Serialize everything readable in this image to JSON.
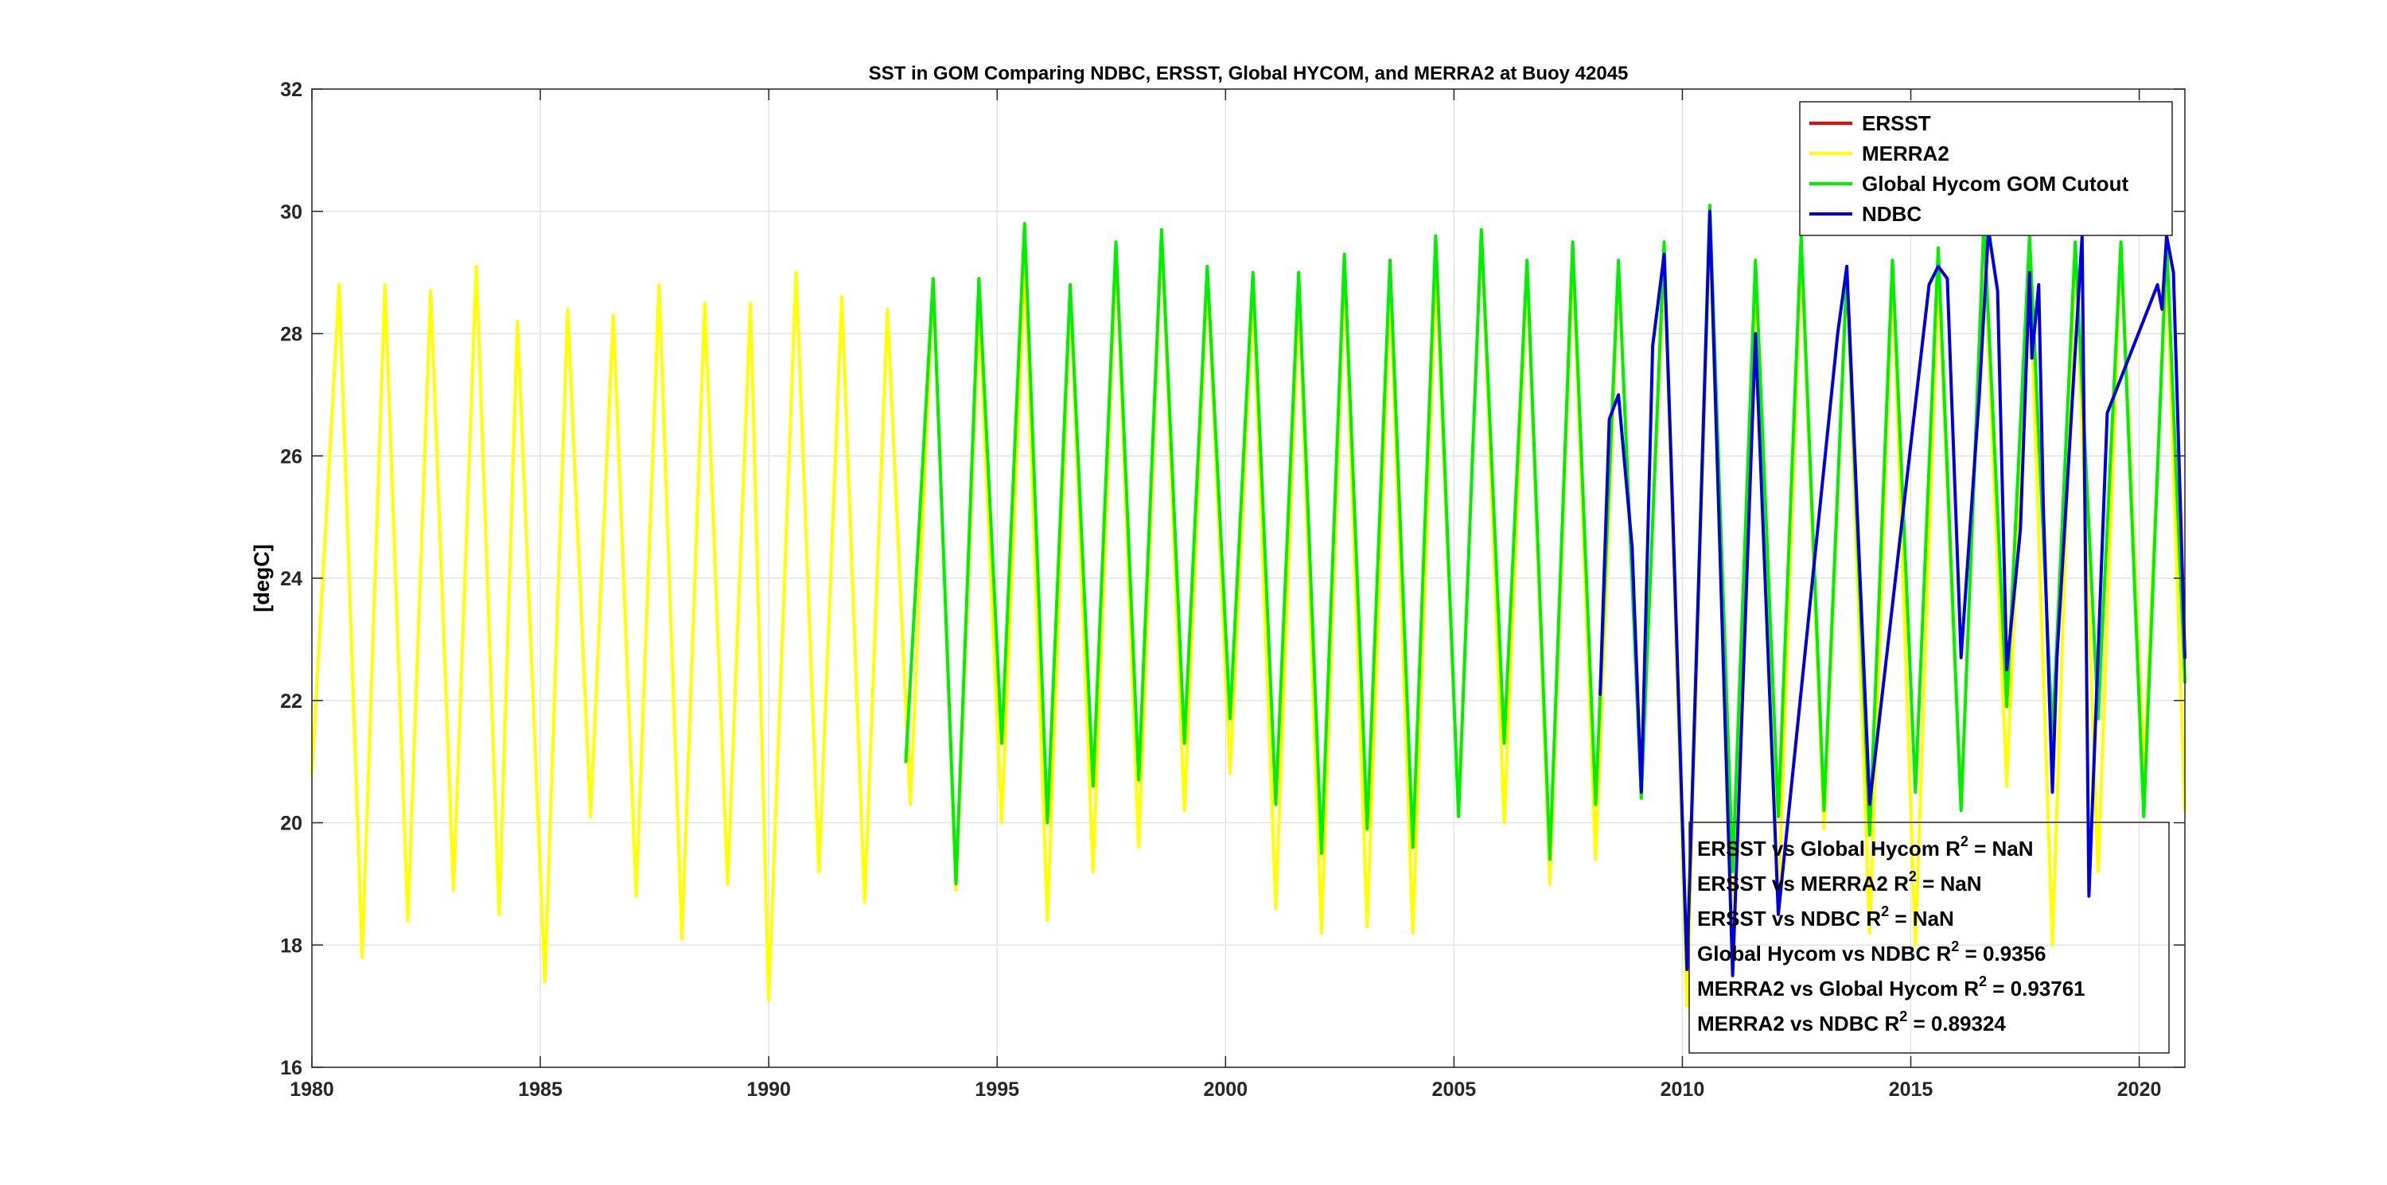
{
  "chart_data": {
    "type": "line",
    "title": "SST in GOM Comparing NDBC, ERSST, Global HYCOM, and MERRA2 at Buoy  42045",
    "ylabel": "[degC]",
    "xlabel": "",
    "xlim": [
      1980,
      2021
    ],
    "ylim": [
      16,
      32
    ],
    "x_ticks": [
      1980,
      1985,
      1990,
      1995,
      2000,
      2005,
      2010,
      2015,
      2020
    ],
    "x_tick_labels": [
      "1980",
      "1985",
      "1990",
      "1995",
      "2000",
      "2005",
      "2010",
      "2015",
      "2020"
    ],
    "y_ticks": [
      16,
      18,
      20,
      22,
      24,
      26,
      28,
      30,
      32
    ],
    "y_tick_labels": [
      "16",
      "18",
      "20",
      "22",
      "24",
      "26",
      "28",
      "30",
      "32"
    ],
    "grid": true,
    "legend_position": "top-right",
    "series": [
      {
        "name": "ERSST",
        "color": "#ff0000",
        "x": [],
        "values": []
      },
      {
        "name": "MERRA2",
        "color": "#ffff00",
        "x": [
          1980.0,
          1980.6,
          1981.1,
          1981.6,
          1982.1,
          1982.6,
          1983.1,
          1983.6,
          1984.1,
          1984.5,
          1985.1,
          1985.6,
          1986.1,
          1986.6,
          1987.1,
          1987.6,
          1988.1,
          1988.6,
          1989.1,
          1989.6,
          1990.0,
          1990.6,
          1991.1,
          1991.6,
          1992.1,
          1992.6,
          1993.1,
          1993.6,
          1994.1,
          1994.6,
          1995.1,
          1995.6,
          1996.1,
          1996.6,
          1997.1,
          1997.6,
          1998.1,
          1998.6,
          1999.1,
          1999.6,
          2000.1,
          2000.6,
          2001.1,
          2001.6,
          2002.1,
          2002.6,
          2003.1,
          2003.6,
          2004.1,
          2004.6,
          2005.1,
          2005.6,
          2006.1,
          2006.6,
          2007.1,
          2007.6,
          2008.1,
          2008.6,
          2009.1,
          2009.6,
          2010.1,
          2010.6,
          2011.1,
          2011.6,
          2012.1,
          2012.6,
          2013.1,
          2013.6,
          2014.1,
          2014.6,
          2015.1,
          2015.6,
          2016.1,
          2016.6,
          2017.1,
          2017.6,
          2018.1,
          2018.6,
          2019.1,
          2019.6,
          2020.1,
          2020.6,
          2021.0
        ],
        "values": [
          20.8,
          28.8,
          17.8,
          28.8,
          18.4,
          28.7,
          18.9,
          29.1,
          18.5,
          28.2,
          17.4,
          28.4,
          20.1,
          28.3,
          18.8,
          28.8,
          18.1,
          28.5,
          19.0,
          28.5,
          17.1,
          29.0,
          19.2,
          28.6,
          18.7,
          28.4,
          20.3,
          28.9,
          18.9,
          28.4,
          20.0,
          29.2,
          18.4,
          28.7,
          19.2,
          29.4,
          19.6,
          29.7,
          20.2,
          29.0,
          20.8,
          28.7,
          18.6,
          28.7,
          18.2,
          29.1,
          18.3,
          28.8,
          18.2,
          29.1,
          20.2,
          29.7,
          20.0,
          29.1,
          19.0,
          29.3,
          19.4,
          29.1,
          20.6,
          29.2,
          17.0,
          29.5,
          18.2,
          29.0,
          18.6,
          29.4,
          19.9,
          29.0,
          18.2,
          29.1,
          18.0,
          29.0,
          20.2,
          29.6,
          20.6,
          29.2,
          18.0,
          29.5,
          19.2,
          29.5,
          20.8,
          29.2,
          20.2
        ]
      },
      {
        "name": "Global Hycom GOM Cutout",
        "color": "#00ee00",
        "x": [
          1993.0,
          1993.6,
          1994.1,
          1994.6,
          1995.1,
          1995.6,
          1996.1,
          1996.6,
          1997.1,
          1997.6,
          1998.1,
          1998.6,
          1999.1,
          1999.6,
          2000.1,
          2000.6,
          2001.1,
          2001.6,
          2002.1,
          2002.6,
          2003.1,
          2003.6,
          2004.1,
          2004.6,
          2005.1,
          2005.6,
          2006.1,
          2006.6,
          2007.1,
          2007.6,
          2008.1,
          2008.6,
          2009.1,
          2009.6,
          2010.1,
          2010.6,
          2011.1,
          2011.6,
          2012.1,
          2012.6,
          2013.1,
          2013.6,
          2014.1,
          2014.6,
          2015.1,
          2015.6,
          2016.1,
          2016.6,
          2017.1,
          2017.6,
          2018.1,
          2018.6,
          2019.1,
          2019.6,
          2020.1,
          2020.6,
          2021.0
        ],
        "values": [
          21.0,
          28.9,
          19.0,
          28.9,
          21.3,
          29.8,
          20.0,
          28.8,
          20.6,
          29.5,
          20.7,
          29.7,
          21.3,
          29.1,
          21.7,
          29.0,
          20.3,
          29.0,
          19.5,
          29.3,
          19.9,
          29.2,
          19.6,
          29.6,
          20.1,
          29.7,
          21.3,
          29.2,
          19.4,
          29.5,
          20.3,
          29.2,
          20.4,
          29.5,
          17.6,
          30.1,
          19.2,
          29.2,
          20.1,
          29.6,
          20.2,
          29.0,
          19.8,
          29.2,
          20.5,
          29.4,
          20.2,
          29.8,
          21.9,
          29.6,
          21.4,
          29.5,
          21.7,
          29.5,
          20.1,
          29.5,
          22.3
        ]
      },
      {
        "name": "NDBC",
        "color": "#0000dd",
        "x": [
          2008.2,
          2008.4,
          2008.6,
          2008.9,
          2009.1,
          2009.35,
          2009.6,
          2009.75,
          2010.1,
          2010.6,
          2011.1,
          2011.6,
          2012.1,
          2013.4,
          2013.6,
          2014.1,
          2015.4,
          2015.6,
          2015.8,
          2016.1,
          2016.5,
          2016.7,
          2016.9,
          2017.1,
          2017.4,
          2017.6,
          2017.65,
          2017.8,
          2017.9,
          2018.1,
          2018.2,
          2018.75,
          2018.9,
          2019.3,
          2020.4,
          2020.5,
          2020.6,
          2020.75,
          2021.0
        ],
        "values": [
          22.1,
          26.6,
          27.0,
          24.5,
          20.5,
          27.8,
          29.3,
          26.0,
          17.6,
          30.0,
          17.5,
          28.0,
          18.5,
          28.0,
          29.1,
          20.3,
          28.8,
          29.1,
          28.9,
          22.7,
          27.0,
          29.7,
          28.7,
          22.5,
          24.8,
          29.0,
          27.6,
          28.8,
          25.2,
          20.5,
          22.7,
          29.6,
          18.8,
          26.7,
          28.8,
          28.4,
          29.6,
          29.0,
          22.7
        ]
      }
    ],
    "annotations": [
      {
        "prefix": "ERSST vs Global Hycom R",
        "sup": "2",
        "suffix": " = NaN"
      },
      {
        "prefix": "ERSST vs MERRA2 R",
        "sup": "2",
        "suffix": " = NaN"
      },
      {
        "prefix": "ERSST vs NDBC R",
        "sup": "2",
        "suffix": " = NaN"
      },
      {
        "prefix": "Global Hycom vs NDBC R",
        "sup": "2",
        "suffix": " = 0.9356"
      },
      {
        "prefix": "MERRA2 vs Global Hycom R",
        "sup": "2",
        "suffix": " = 0.93761"
      },
      {
        "prefix": "MERRA2 vs NDBC R",
        "sup": "2",
        "suffix": " = 0.89324"
      }
    ]
  }
}
